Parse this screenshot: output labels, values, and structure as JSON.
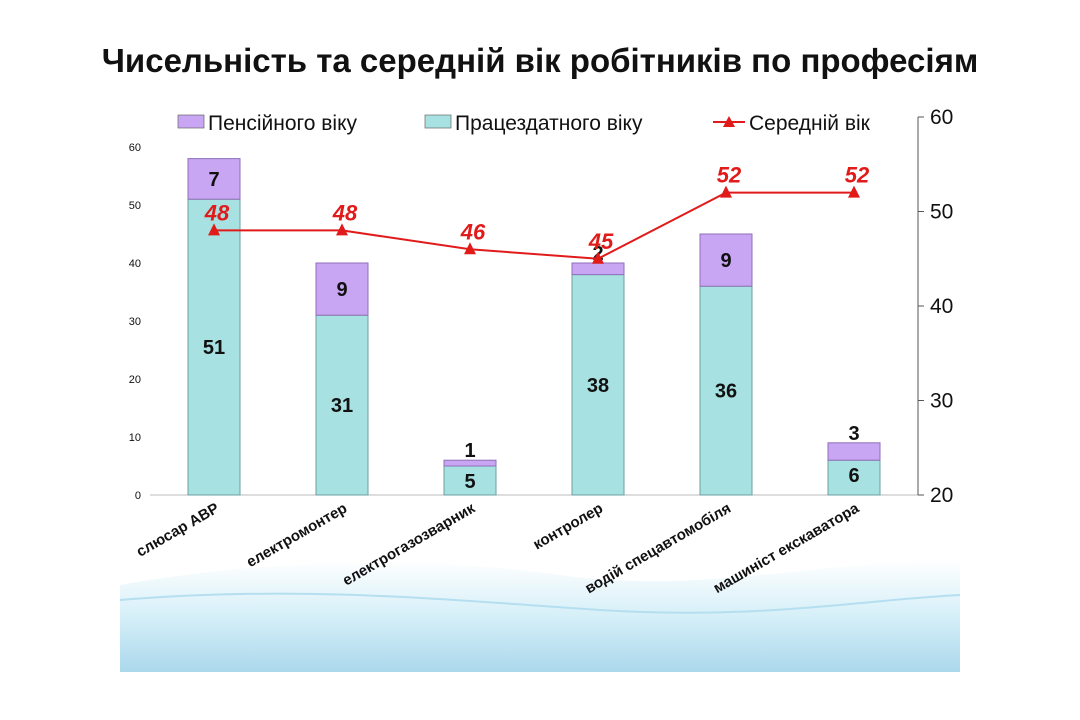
{
  "title": "Чисельність та середній вік робітників по професіям",
  "colors": {
    "pension": "#c9a6f3",
    "working": "#a8e1e1",
    "line": "#e11a1a",
    "wave": "#9fd7ec"
  },
  "chart_data": {
    "type": "bar",
    "stacked": true,
    "categories": [
      "слюсар АВР",
      "електромонтер",
      "електрогазозварник",
      "контролер",
      "водій спецавтомобіля",
      "машиніст екскаватора"
    ],
    "series": [
      {
        "name": "Працездатного віку",
        "values": [
          51,
          31,
          5,
          38,
          36,
          6
        ],
        "axis": "left"
      },
      {
        "name": "Пенсійного віку",
        "values": [
          7,
          9,
          1,
          2,
          9,
          3
        ],
        "axis": "left"
      },
      {
        "name": "Середній вік",
        "type": "line",
        "values": [
          48,
          48,
          46,
          45,
          52,
          52
        ],
        "axis": "right"
      }
    ],
    "legend": [
      "Пенсійного віку",
      "Працездатного віку",
      "Середній вік"
    ],
    "legend_position": "top",
    "y_left": {
      "min": 0,
      "max": 60,
      "ticks": [
        "0",
        "10",
        "20",
        "30",
        "40",
        "50",
        "60"
      ]
    },
    "y_right": {
      "min": 20,
      "max": 60,
      "ticks": [
        "20",
        "30",
        "40",
        "50",
        "60"
      ]
    },
    "grid": false
  }
}
